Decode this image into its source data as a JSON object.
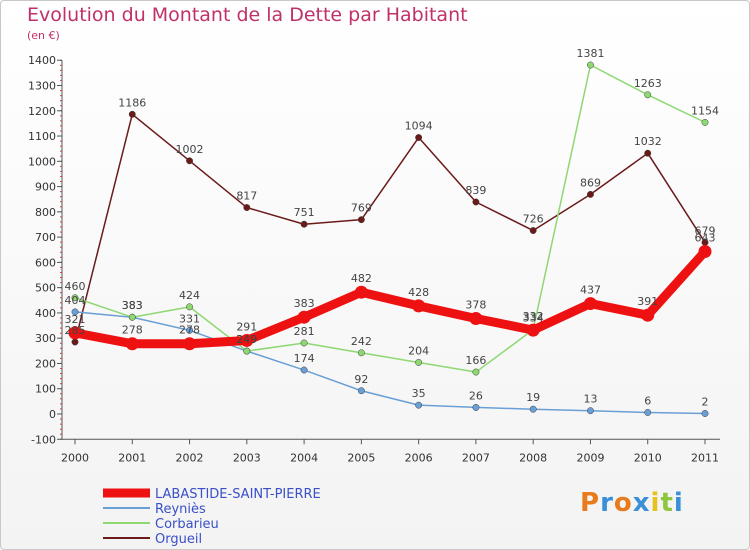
{
  "header": {
    "title": "Evolution du Montant de la Dette par Habitant",
    "subtitle": "(en €)"
  },
  "logo_text": "Proxiti",
  "chart_data": {
    "type": "line",
    "title": "Evolution du Montant de la Dette par Habitant",
    "subtitle": "(en €)",
    "xlabel": "",
    "ylabel": "",
    "x": [
      "2000",
      "2001",
      "2002",
      "2003",
      "2004",
      "2005",
      "2006",
      "2007",
      "2008",
      "2009",
      "2010",
      "2011"
    ],
    "ylim": [
      -100,
      1400
    ],
    "yticks": [
      -100,
      0,
      100,
      200,
      300,
      400,
      500,
      600,
      700,
      800,
      900,
      1000,
      1100,
      1200,
      1300,
      1400
    ],
    "grid": false,
    "legend_position": "bottom-left",
    "series": [
      {
        "name": "LABASTIDE-SAINT-PIERRE",
        "color": "#ee1111",
        "values": [
          321,
          278,
          278,
          291,
          383,
          482,
          428,
          378,
          332,
          437,
          391,
          643
        ]
      },
      {
        "name": "Reyniès",
        "color": "#6a9fd6",
        "values": [
          404,
          383,
          331,
          249,
          174,
          92,
          35,
          26,
          19,
          13,
          6,
          2
        ]
      },
      {
        "name": "Corbarieu",
        "color": "#8ed872",
        "values": [
          460,
          383,
          424,
          249,
          281,
          242,
          204,
          166,
          334,
          1381,
          1263,
          1154
        ]
      },
      {
        "name": "Orgueil",
        "color": "#6b1a1a",
        "values": [
          285,
          1186,
          1002,
          817,
          751,
          769,
          1094,
          839,
          726,
          869,
          1032,
          679
        ]
      }
    ]
  }
}
